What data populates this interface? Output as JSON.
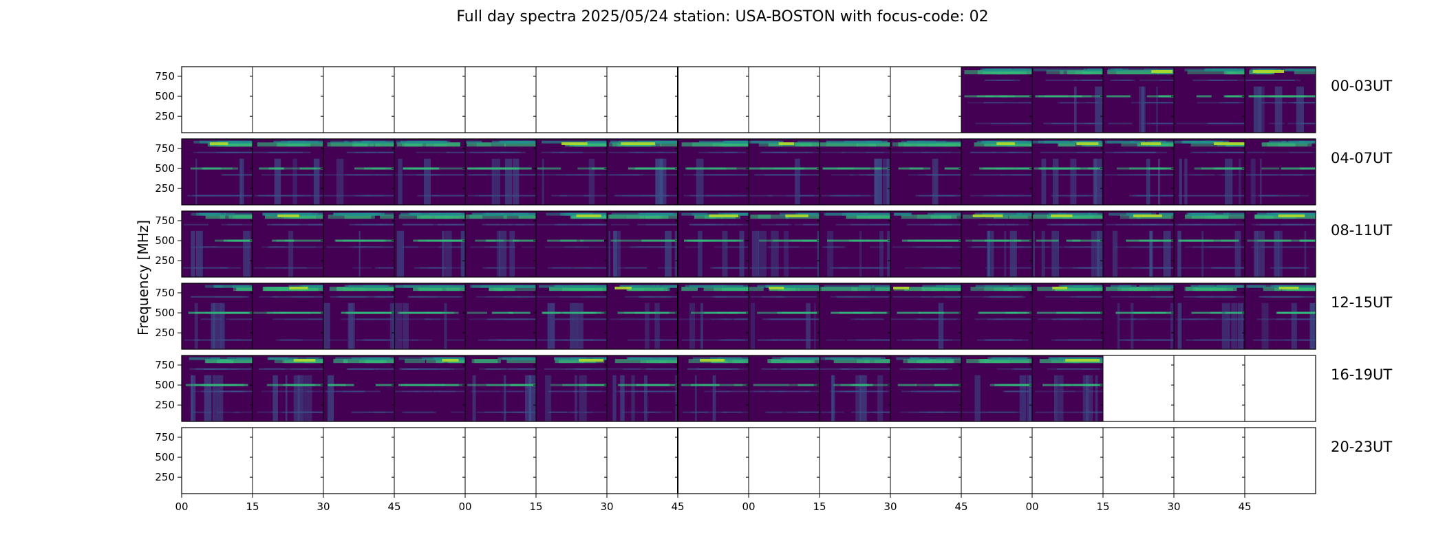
{
  "chart_data": {
    "type": "heatmap",
    "title": "Full day spectra 2025/05/24 station: USA-BOSTON with focus-code: 02",
    "ylabel": "Frequency [MHz]",
    "xlabel": "",
    "ylim": [
      45,
      870
    ],
    "yticks": [
      250,
      500,
      750
    ],
    "xtick_labels": [
      "00",
      "15",
      "30",
      "45",
      "00",
      "15",
      "30",
      "45",
      "00",
      "15",
      "30",
      "45",
      "00",
      "15",
      "30",
      "45"
    ],
    "colormap": "viridis",
    "grid": false,
    "rows": [
      {
        "label": "00-03UT",
        "present": [
          false,
          false,
          false,
          false,
          false,
          false,
          false,
          false,
          false,
          false,
          false,
          true,
          true,
          true,
          true,
          true
        ]
      },
      {
        "label": "04-07UT",
        "present": [
          true,
          true,
          true,
          true,
          true,
          true,
          true,
          true,
          true,
          true,
          true,
          true,
          true,
          true,
          true,
          true
        ]
      },
      {
        "label": "08-11UT",
        "present": [
          true,
          true,
          true,
          true,
          true,
          true,
          true,
          true,
          true,
          true,
          true,
          true,
          true,
          true,
          true,
          true
        ]
      },
      {
        "label": "12-15UT",
        "present": [
          true,
          true,
          true,
          true,
          true,
          true,
          true,
          true,
          true,
          true,
          true,
          true,
          true,
          true,
          true,
          true
        ]
      },
      {
        "label": "16-19UT",
        "present": [
          true,
          true,
          true,
          true,
          true,
          true,
          true,
          true,
          true,
          true,
          true,
          true,
          true,
          false,
          false,
          false
        ]
      },
      {
        "label": "20-23UT",
        "present": [
          false,
          false,
          false,
          false,
          false,
          false,
          false,
          false,
          false,
          false,
          false,
          false,
          false,
          false,
          false,
          false
        ]
      }
    ]
  },
  "colors": {
    "background": "#440154",
    "band_strong": "#b5de2b",
    "band_medium": "#35b779",
    "band_low": "#21918c",
    "band_faint": "#3b528b",
    "axis": "#000000"
  }
}
